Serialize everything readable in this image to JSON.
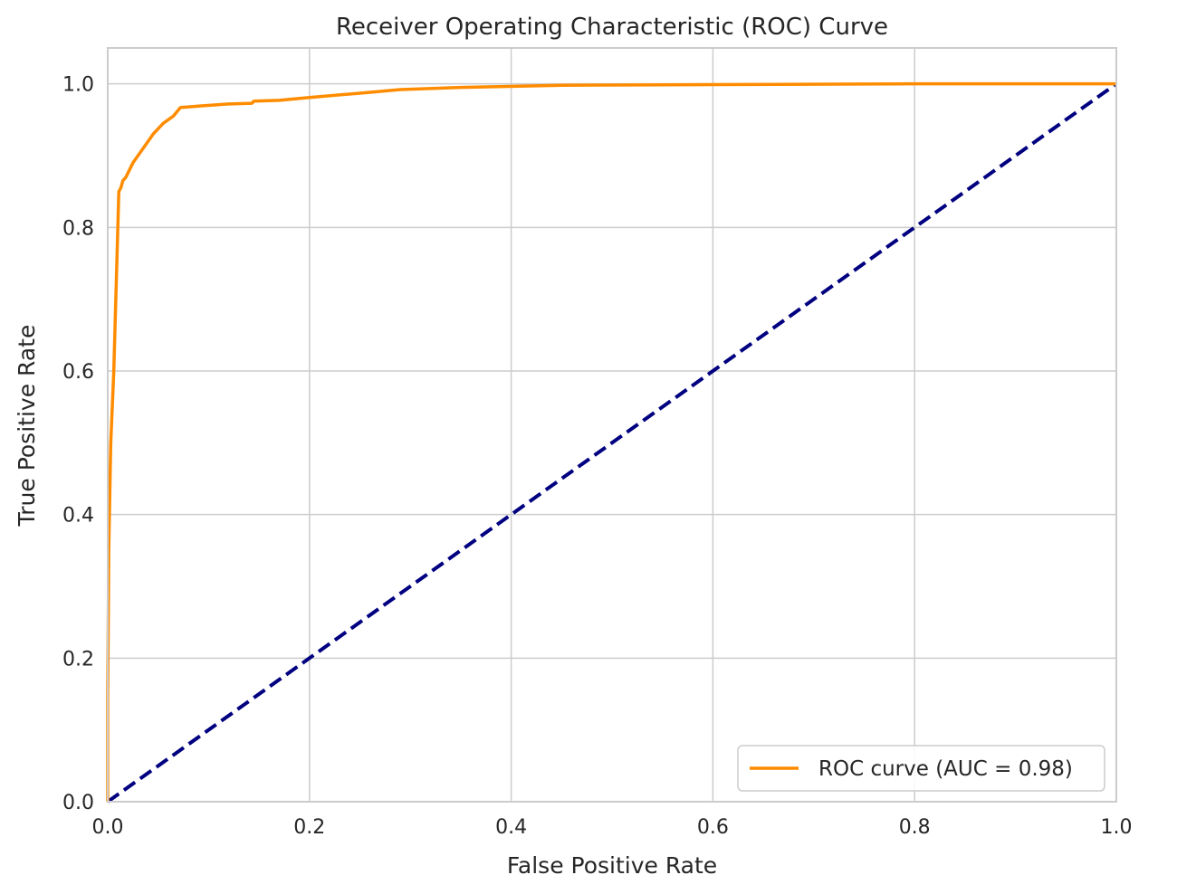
{
  "chart_data": {
    "type": "line",
    "title": "Receiver Operating Characteristic (ROC) Curve",
    "xlabel": "False Positive Rate",
    "ylabel": "True Positive Rate",
    "xlim": [
      0.0,
      1.0
    ],
    "ylim": [
      0.0,
      1.05
    ],
    "xticks": [
      "0.0",
      "0.2",
      "0.4",
      "0.6",
      "0.8",
      "1.0"
    ],
    "yticks": [
      "0.0",
      "0.2",
      "0.4",
      "0.6",
      "0.8",
      "1.0"
    ],
    "grid": true,
    "legend_position": "lower-right",
    "series": [
      {
        "name": "ROC curve (AUC = 0.98)",
        "color": "#ff8c00",
        "style": "solid",
        "x": [
          0.0,
          0.0,
          0.001,
          0.003,
          0.006,
          0.009,
          0.011,
          0.013,
          0.015,
          0.018,
          0.025,
          0.035,
          0.045,
          0.055,
          0.065,
          0.072,
          0.09,
          0.12,
          0.143,
          0.145,
          0.17,
          0.2,
          0.25,
          0.29,
          0.35,
          0.45,
          0.6,
          0.8,
          1.0
        ],
        "y": [
          0.0,
          0.15,
          0.35,
          0.5,
          0.6,
          0.75,
          0.85,
          0.855,
          0.865,
          0.87,
          0.89,
          0.91,
          0.93,
          0.945,
          0.955,
          0.967,
          0.969,
          0.972,
          0.973,
          0.976,
          0.977,
          0.981,
          0.987,
          0.992,
          0.995,
          0.998,
          0.999,
          1.0,
          1.0
        ]
      },
      {
        "name": "",
        "color": "#000080",
        "style": "dashed",
        "x": [
          0.0,
          1.0
        ],
        "y": [
          0.0,
          1.0
        ]
      }
    ]
  }
}
